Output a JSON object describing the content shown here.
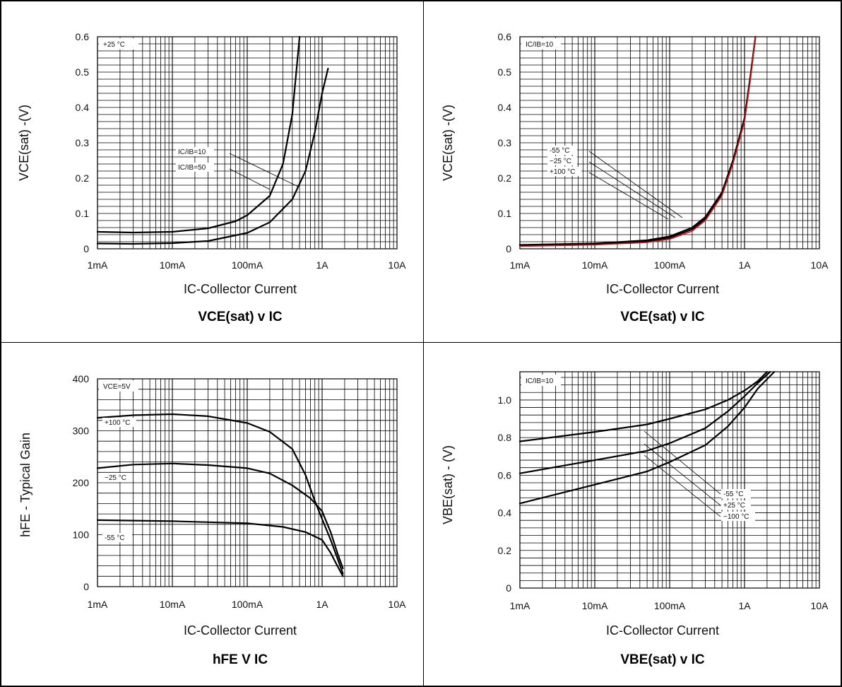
{
  "chart_data": [
    {
      "type": "line",
      "title": "VCE(sat) v IC",
      "xlabel": "IC-Collector Current",
      "ylabel": "VCE(sat) -(V)",
      "x_scale": "log",
      "xlim": [
        "1mA",
        "10A"
      ],
      "ylim": [
        0,
        0.6
      ],
      "x_ticks": [
        "1mA",
        "10mA",
        "100mA",
        "1A",
        "10A"
      ],
      "y_ticks": [
        "0",
        "0.1",
        "0.2",
        "0.3",
        "0.4",
        "0.5",
        "0.6"
      ],
      "condition": "+25 °C",
      "grid": true,
      "series": [
        {
          "name": "IC/IB=10",
          "points": [
            [
              0.001,
              0.015
            ],
            [
              0.003,
              0.014
            ],
            [
              0.01,
              0.016
            ],
            [
              0.03,
              0.022
            ],
            [
              0.1,
              0.045
            ],
            [
              0.2,
              0.075
            ],
            [
              0.4,
              0.14
            ],
            [
              0.6,
              0.22
            ],
            [
              0.8,
              0.33
            ],
            [
              1.0,
              0.44
            ],
            [
              1.2,
              0.51
            ]
          ]
        },
        {
          "name": "IC/IB=50",
          "points": [
            [
              0.001,
              0.048
            ],
            [
              0.003,
              0.046
            ],
            [
              0.01,
              0.048
            ],
            [
              0.03,
              0.058
            ],
            [
              0.07,
              0.078
            ],
            [
              0.1,
              0.095
            ],
            [
              0.2,
              0.15
            ],
            [
              0.3,
              0.24
            ],
            [
              0.4,
              0.38
            ],
            [
              0.5,
              0.6
            ]
          ]
        }
      ],
      "labels": [
        "IC/IB=10",
        "IC/IB=50"
      ]
    },
    {
      "type": "line",
      "title": "VCE(sat) v IC",
      "xlabel": "IC-Collector Current",
      "ylabel": "VCE(sat) -(V)",
      "x_scale": "log",
      "xlim": [
        "1mA",
        "10A"
      ],
      "ylim": [
        0,
        0.6
      ],
      "x_ticks": [
        "1mA",
        "10mA",
        "100mA",
        "1A",
        "10A"
      ],
      "y_ticks": [
        "0",
        "0.1",
        "0.2",
        "0.3",
        "0.4",
        "0.5",
        "0.6"
      ],
      "condition": "IC/IB=10",
      "grid": true,
      "series": [
        {
          "name": "-55 °C",
          "color": "#000000",
          "points": [
            [
              0.001,
              0.011
            ],
            [
              0.01,
              0.015
            ],
            [
              0.05,
              0.024
            ],
            [
              0.1,
              0.035
            ],
            [
              0.2,
              0.06
            ],
            [
              0.3,
              0.09
            ],
            [
              0.5,
              0.16
            ],
            [
              0.7,
              0.25
            ],
            [
              1.0,
              0.37
            ],
            [
              1.2,
              0.49
            ],
            [
              1.4,
              0.6
            ]
          ]
        },
        {
          "name": "−25 °C",
          "color": "#000000",
          "points": [
            [
              0.001,
              0.009
            ],
            [
              0.01,
              0.013
            ],
            [
              0.05,
              0.021
            ],
            [
              0.1,
              0.031
            ],
            [
              0.2,
              0.055
            ],
            [
              0.3,
              0.085
            ],
            [
              0.5,
              0.155
            ],
            [
              0.7,
              0.245
            ],
            [
              1.0,
              0.365
            ],
            [
              1.2,
              0.485
            ],
            [
              1.4,
              0.6
            ]
          ]
        },
        {
          "name": "+100 °C",
          "color": "#d11a1a",
          "points": [
            [
              0.001,
              0.007
            ],
            [
              0.01,
              0.011
            ],
            [
              0.05,
              0.018
            ],
            [
              0.1,
              0.027
            ],
            [
              0.2,
              0.05
            ],
            [
              0.3,
              0.08
            ],
            [
              0.5,
              0.15
            ],
            [
              0.7,
              0.24
            ],
            [
              1.0,
              0.36
            ],
            [
              1.2,
              0.48
            ],
            [
              1.4,
              0.6
            ]
          ]
        }
      ],
      "labels": [
        "-55 °C",
        "−25 °C",
        "+100 °C"
      ]
    },
    {
      "type": "line",
      "title": "hFE V IC",
      "xlabel": "IC-Collector Current",
      "ylabel": "hFE - Typical Gain",
      "x_scale": "log",
      "xlim": [
        "1mA",
        "10A"
      ],
      "ylim": [
        0,
        400
      ],
      "x_ticks": [
        "1mA",
        "10mA",
        "100mA",
        "1A",
        "10A"
      ],
      "y_ticks": [
        "0",
        "100",
        "200",
        "300",
        "400"
      ],
      "condition": "VCE=5V",
      "grid": true,
      "series": [
        {
          "name": "+100 °C",
          "points": [
            [
              0.001,
              325
            ],
            [
              0.003,
              330
            ],
            [
              0.01,
              332
            ],
            [
              0.03,
              328
            ],
            [
              0.1,
              315
            ],
            [
              0.2,
              298
            ],
            [
              0.4,
              265
            ],
            [
              0.6,
              215
            ],
            [
              0.8,
              165
            ],
            [
              1.0,
              130
            ],
            [
              1.3,
              90
            ],
            [
              1.6,
              55
            ],
            [
              1.9,
              25
            ]
          ]
        },
        {
          "name": "−25 °C",
          "points": [
            [
              0.001,
              228
            ],
            [
              0.003,
              235
            ],
            [
              0.01,
              237
            ],
            [
              0.03,
              234
            ],
            [
              0.1,
              228
            ],
            [
              0.2,
              218
            ],
            [
              0.4,
              195
            ],
            [
              0.7,
              170
            ],
            [
              1.0,
              145
            ],
            [
              1.3,
              105
            ],
            [
              1.6,
              65
            ],
            [
              1.9,
              35
            ]
          ]
        },
        {
          "name": "-55 °C",
          "points": [
            [
              0.001,
              128
            ],
            [
              0.01,
              126
            ],
            [
              0.1,
              122
            ],
            [
              0.3,
              115
            ],
            [
              0.6,
              105
            ],
            [
              1.0,
              90
            ],
            [
              1.3,
              65
            ],
            [
              1.6,
              40
            ],
            [
              1.9,
              20
            ]
          ]
        }
      ],
      "labels": [
        "+100 °C",
        "−25 °C",
        "-55 °C"
      ]
    },
    {
      "type": "line",
      "title": "VBE(sat) v IC",
      "xlabel": "IC-Collector Current",
      "ylabel": "VBE(sat) - (V)",
      "x_scale": "log",
      "xlim": [
        "1mA",
        "10A"
      ],
      "ylim": [
        0,
        1.15
      ],
      "x_ticks": [
        "1mA",
        "10mA",
        "100mA",
        "1A",
        "10A"
      ],
      "y_ticks": [
        "0",
        "0.2",
        "0.4",
        "0.6",
        "0.8",
        "1.0"
      ],
      "condition": "IC/IB=10",
      "grid": true,
      "series": [
        {
          "name": "-55 °C",
          "points": [
            [
              0.001,
              0.78
            ],
            [
              0.01,
              0.83
            ],
            [
              0.05,
              0.87
            ],
            [
              0.1,
              0.9
            ],
            [
              0.3,
              0.95
            ],
            [
              0.6,
              1.0
            ],
            [
              1.0,
              1.05
            ],
            [
              1.5,
              1.1
            ],
            [
              2.0,
              1.15
            ]
          ]
        },
        {
          "name": "+25 °C",
          "points": [
            [
              0.001,
              0.61
            ],
            [
              0.01,
              0.68
            ],
            [
              0.05,
              0.73
            ],
            [
              0.1,
              0.77
            ],
            [
              0.3,
              0.85
            ],
            [
              0.6,
              0.94
            ],
            [
              1.0,
              1.02
            ],
            [
              1.5,
              1.09
            ],
            [
              2.2,
              1.15
            ]
          ]
        },
        {
          "name": "−100 °C",
          "points": [
            [
              0.001,
              0.45
            ],
            [
              0.01,
              0.55
            ],
            [
              0.05,
              0.62
            ],
            [
              0.1,
              0.67
            ],
            [
              0.3,
              0.76
            ],
            [
              0.6,
              0.86
            ],
            [
              1.0,
              0.96
            ],
            [
              1.5,
              1.06
            ],
            [
              2.5,
              1.15
            ]
          ]
        }
      ],
      "labels": [
        "-55 °C",
        "+25 °C",
        "−100 °C"
      ]
    }
  ]
}
